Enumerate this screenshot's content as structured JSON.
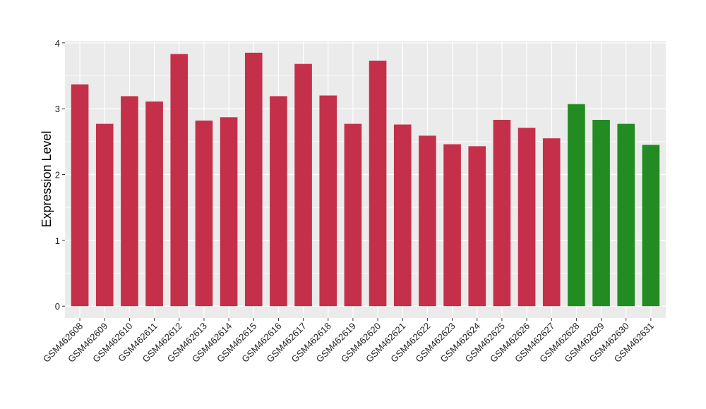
{
  "chart_data": {
    "type": "bar",
    "title": "",
    "xlabel": "",
    "ylabel": "Expression Level",
    "ylim": [
      -0.18,
      4.03
    ],
    "yticks": [
      0,
      1,
      2,
      3,
      4
    ],
    "grid": true,
    "categories": [
      "GSM462608",
      "GSM462609",
      "GSM462610",
      "GSM462611",
      "GSM462612",
      "GSM462613",
      "GSM462614",
      "GSM462615",
      "GSM462616",
      "GSM462617",
      "GSM462618",
      "GSM462619",
      "GSM462620",
      "GSM462621",
      "GSM462622",
      "GSM462623",
      "GSM462624",
      "GSM462625",
      "GSM462626",
      "GSM462627",
      "GSM462628",
      "GSM462629",
      "GSM462630",
      "GSM462631"
    ],
    "values": [
      3.37,
      2.77,
      3.19,
      3.11,
      3.83,
      2.82,
      2.87,
      3.85,
      3.19,
      3.68,
      3.2,
      2.77,
      3.73,
      2.76,
      2.59,
      2.46,
      2.43,
      2.83,
      2.71,
      2.55,
      3.07,
      2.83,
      2.77,
      2.45
    ],
    "groups": [
      "a",
      "a",
      "a",
      "a",
      "a",
      "a",
      "a",
      "a",
      "a",
      "a",
      "a",
      "a",
      "a",
      "a",
      "a",
      "a",
      "a",
      "a",
      "a",
      "a",
      "b",
      "b",
      "b",
      "b"
    ],
    "group_colors": {
      "a": "#C4304A",
      "b": "#228B22"
    },
    "panel_color": "#EBEBEB",
    "grid_color": "#FFFFFF"
  }
}
